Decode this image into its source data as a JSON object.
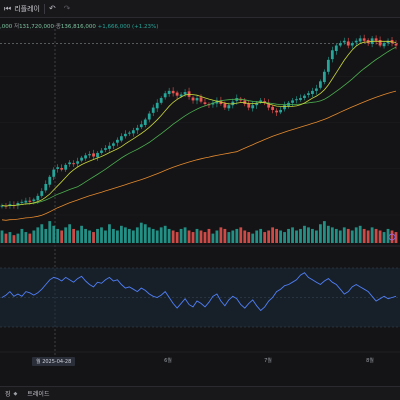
{
  "toolbar": {
    "replay_label": "리플레이"
  },
  "legend": {
    "prefix": ",000",
    "low_label": "저",
    "low_value": "131,720,000",
    "close_label": "종",
    "close_value": "136,816,000",
    "change": "+1,666,000 (+1.23%)"
  },
  "xaxis": {
    "months": [
      "6월",
      "7월",
      "8월"
    ],
    "crosshair_date": "월 2025-04-28"
  },
  "bottom": {
    "item1": "징",
    "item2": "트레이드"
  },
  "colors": {
    "up": "#26a69a",
    "down": "#ef5350",
    "ma_short": "#4caf50",
    "ma_mid": "#c8d63a",
    "ma_long": "#e68a2e",
    "rsi": "#4f7ef7"
  },
  "chart_data": {
    "type": "line",
    "candles_close": [
      128,
      127,
      129,
      128,
      130,
      131,
      132,
      131,
      133,
      136,
      140,
      146,
      152,
      158,
      160,
      158,
      162,
      164,
      163,
      165,
      168,
      170,
      171,
      169,
      172,
      174,
      176,
      178,
      180,
      183,
      186,
      188,
      189,
      191,
      193,
      196,
      200,
      205,
      210,
      214,
      218,
      222,
      224,
      222,
      220,
      221,
      223,
      219,
      216,
      218,
      215,
      213,
      212,
      214,
      216,
      213,
      210,
      212,
      215,
      218,
      216,
      213,
      210,
      212,
      214,
      216,
      214,
      210,
      208,
      206,
      208,
      212,
      214,
      216,
      217,
      218,
      220,
      222,
      224,
      226,
      232,
      240,
      250,
      258,
      262,
      264,
      266,
      262,
      264,
      266,
      268,
      266,
      264,
      268,
      266,
      262,
      264,
      266,
      264,
      262
    ],
    "volumes": [
      8,
      6,
      7,
      5,
      6,
      9,
      7,
      6,
      8,
      10,
      12,
      9,
      14,
      11,
      9,
      8,
      10,
      12,
      9,
      8,
      11,
      9,
      8,
      7,
      9,
      10,
      8,
      12,
      9,
      8,
      11,
      10,
      9,
      8,
      10,
      13,
      12,
      10,
      9,
      8,
      10,
      11,
      9,
      8,
      7,
      9,
      10,
      8,
      7,
      9,
      8,
      7,
      9,
      6,
      8,
      10,
      9,
      7,
      8,
      9,
      10,
      8,
      7,
      6,
      8,
      9,
      7,
      8,
      10,
      9,
      8,
      7,
      9,
      10,
      8,
      9,
      11,
      10,
      9,
      8,
      12,
      14,
      11,
      10,
      9,
      8,
      10,
      9,
      8,
      10,
      11,
      9,
      8,
      10,
      9,
      8,
      7,
      9,
      8,
      7
    ],
    "rsi": [
      55,
      57,
      60,
      56,
      58,
      56,
      60,
      59,
      57,
      59,
      62,
      66,
      70,
      72,
      71,
      69,
      72,
      70,
      68,
      71,
      73,
      69,
      66,
      64,
      68,
      67,
      70,
      72,
      69,
      70,
      66,
      63,
      64,
      62,
      60,
      63,
      61,
      58,
      56,
      55,
      57,
      60,
      55,
      50,
      46,
      50,
      54,
      49,
      47,
      52,
      50,
      47,
      51,
      56,
      58,
      52,
      48,
      53,
      56,
      54,
      49,
      46,
      50,
      53,
      48,
      44,
      47,
      52,
      55,
      60,
      62,
      65,
      66,
      68,
      70,
      74,
      76,
      72,
      70,
      68,
      66,
      69,
      71,
      68,
      66,
      62,
      58,
      60,
      64,
      66,
      64,
      62,
      60,
      56,
      52,
      54,
      56,
      54,
      55,
      56
    ]
  }
}
